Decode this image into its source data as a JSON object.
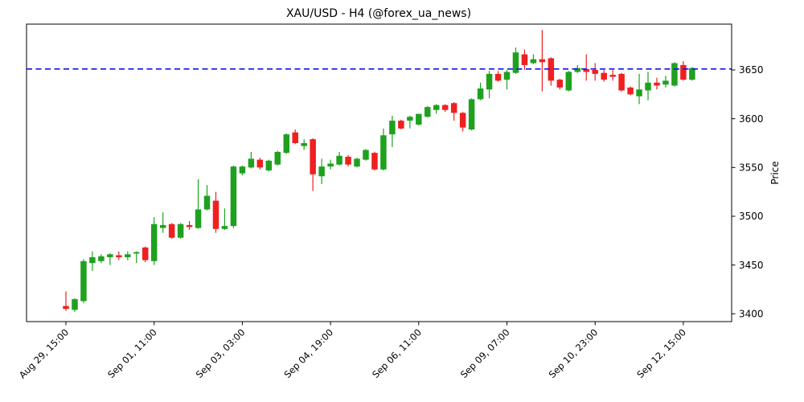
{
  "chart_data": {
    "type": "candlestick",
    "title": "XAU/USD - H4 (@forex_ua_news)",
    "ylabel": "Price",
    "y_ticks": [
      3400,
      3450,
      3500,
      3550,
      3600,
      3650
    ],
    "ylim": [
      3392,
      3697
    ],
    "x_tick_every": 10,
    "x_tick_labels": [
      "Aug 29, 15:00",
      "Sep 01, 11:00",
      "Sep 03, 03:00",
      "Sep 04, 19:00",
      "Sep 06, 11:00",
      "Sep 09, 07:00",
      "Sep 10, 23:00",
      "Sep 12, 15:00"
    ],
    "reference_line": {
      "price": 3651,
      "color": "#1212ee",
      "style": "dashed"
    },
    "colors": {
      "up": "#1fa11f",
      "down": "#ef2020",
      "axis": "#000000"
    },
    "grid": false,
    "legend": "none",
    "candles_ohlc": [
      [
        3408,
        3423,
        3403,
        3405
      ],
      [
        3404,
        3416,
        3402,
        3415
      ],
      [
        3413,
        3456,
        3411,
        3454
      ],
      [
        3452,
        3464,
        3444,
        3458
      ],
      [
        3454,
        3461,
        3452,
        3459
      ],
      [
        3458,
        3462,
        3450,
        3461
      ],
      [
        3460,
        3464,
        3455,
        3458
      ],
      [
        3458,
        3464,
        3455,
        3461
      ],
      [
        3462,
        3464,
        3452,
        3463
      ],
      [
        3468,
        3469,
        3453,
        3455
      ],
      [
        3454,
        3499,
        3450,
        3492
      ],
      [
        3488,
        3504,
        3483,
        3491
      ],
      [
        3492,
        3493,
        3477,
        3478
      ],
      [
        3478,
        3493,
        3477,
        3492
      ],
      [
        3491,
        3495,
        3486,
        3489
      ],
      [
        3488,
        3538,
        3487,
        3507
      ],
      [
        3507,
        3532,
        3506,
        3521
      ],
      [
        3516,
        3525,
        3483,
        3487
      ],
      [
        3487,
        3508,
        3486,
        3490
      ],
      [
        3490,
        3552,
        3488,
        3551
      ],
      [
        3544,
        3552,
        3542,
        3551
      ],
      [
        3550,
        3566,
        3549,
        3559
      ],
      [
        3558,
        3560,
        3548,
        3550
      ],
      [
        3547,
        3558,
        3546,
        3557
      ],
      [
        3553,
        3567,
        3552,
        3566
      ],
      [
        3565,
        3585,
        3564,
        3584
      ],
      [
        3586,
        3589,
        3574,
        3575
      ],
      [
        3572,
        3579,
        3568,
        3575
      ],
      [
        3579,
        3580,
        3526,
        3543
      ],
      [
        3541,
        3559,
        3533,
        3551
      ],
      [
        3551,
        3558,
        3548,
        3554
      ],
      [
        3553,
        3566,
        3552,
        3562
      ],
      [
        3561,
        3563,
        3551,
        3553
      ],
      [
        3551,
        3560,
        3550,
        3559
      ],
      [
        3558,
        3569,
        3557,
        3568
      ],
      [
        3565,
        3566,
        3547,
        3548
      ],
      [
        3548,
        3590,
        3547,
        3583
      ],
      [
        3584,
        3603,
        3571,
        3598
      ],
      [
        3598,
        3599,
        3589,
        3590
      ],
      [
        3598,
        3603,
        3590,
        3602
      ],
      [
        3594,
        3605,
        3593,
        3605
      ],
      [
        3602,
        3613,
        3601,
        3612
      ],
      [
        3609,
        3615,
        3605,
        3614
      ],
      [
        3614,
        3615,
        3607,
        3609
      ],
      [
        3616,
        3617,
        3598,
        3606
      ],
      [
        3606,
        3607,
        3587,
        3591
      ],
      [
        3589,
        3621,
        3588,
        3620
      ],
      [
        3620,
        3637,
        3619,
        3631
      ],
      [
        3630,
        3649,
        3621,
        3646
      ],
      [
        3646,
        3649,
        3638,
        3639
      ],
      [
        3640,
        3650,
        3630,
        3648
      ],
      [
        3647,
        3673,
        3646,
        3668
      ],
      [
        3666,
        3671,
        3650,
        3655
      ],
      [
        3657,
        3666,
        3656,
        3661
      ],
      [
        3661,
        3691,
        3628,
        3658
      ],
      [
        3662,
        3663,
        3634,
        3639
      ],
      [
        3640,
        3641,
        3630,
        3632
      ],
      [
        3629,
        3649,
        3628,
        3648
      ],
      [
        3648,
        3655,
        3647,
        3652
      ],
      [
        3651,
        3666,
        3639,
        3648
      ],
      [
        3650,
        3657,
        3639,
        3646
      ],
      [
        3647,
        3650,
        3638,
        3640
      ],
      [
        3645,
        3650,
        3639,
        3643
      ],
      [
        3646,
        3647,
        3628,
        3629
      ],
      [
        3632,
        3633,
        3624,
        3625
      ],
      [
        3623,
        3646,
        3615,
        3630
      ],
      [
        3629,
        3648,
        3619,
        3637
      ],
      [
        3637,
        3642,
        3630,
        3634
      ],
      [
        3635,
        3644,
        3632,
        3639
      ],
      [
        3634,
        3658,
        3633,
        3657
      ],
      [
        3655,
        3659,
        3639,
        3640
      ],
      [
        3640,
        3653,
        3639,
        3652
      ]
    ]
  }
}
